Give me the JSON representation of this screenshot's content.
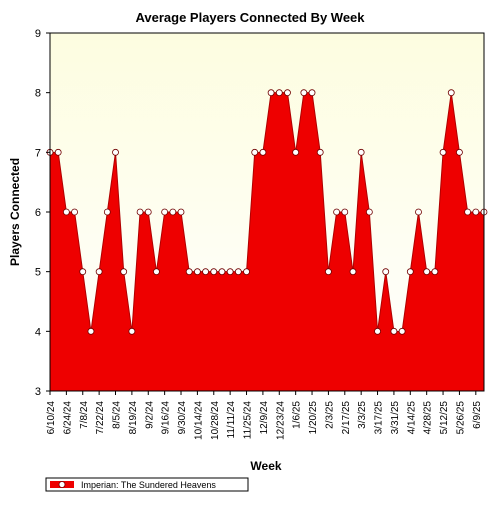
{
  "chart_data": {
    "type": "area",
    "title": "Average Players Connected By Week",
    "xlabel": "Week",
    "ylabel": "Players Connected",
    "ylim": [
      3,
      9
    ],
    "yticks": [
      3,
      4,
      5,
      6,
      7,
      8,
      9
    ],
    "grid": false,
    "legend_position": "bottom-left",
    "x_tick_labels": [
      "6/10/24",
      "6/24/24",
      "7/8/24",
      "7/22/24",
      "8/5/24",
      "8/19/24",
      "9/2/24",
      "9/16/24",
      "9/30/24",
      "10/14/24",
      "10/28/24",
      "11/11/24",
      "11/25/24",
      "12/9/24",
      "12/23/24",
      "1/6/25",
      "1/20/25",
      "2/3/25",
      "2/17/25",
      "3/3/25",
      "3/17/25",
      "3/31/25",
      "4/14/25",
      "4/28/25",
      "5/12/25",
      "5/26/25",
      "6/9/25"
    ],
    "series": [
      {
        "name": "Imperian: The Sundered Heavens",
        "color": "#ee0000",
        "values": [
          7,
          7,
          6,
          6,
          5,
          4,
          5,
          6,
          7,
          5,
          4,
          6,
          6,
          5,
          6,
          6,
          6,
          5,
          5,
          5,
          5,
          5,
          5,
          5,
          5,
          7,
          7,
          8,
          8,
          8,
          7,
          8,
          8,
          7,
          5,
          6,
          6,
          5,
          7,
          6,
          4,
          5,
          4,
          4,
          5,
          6,
          5,
          5,
          7,
          8,
          7,
          6,
          6,
          6
        ]
      }
    ]
  },
  "colors": {
    "plot_background_top": "#fdfde0",
    "plot_background_bottom": "#ffffff",
    "area_fill": "#ee0000",
    "line": "#b00000"
  }
}
